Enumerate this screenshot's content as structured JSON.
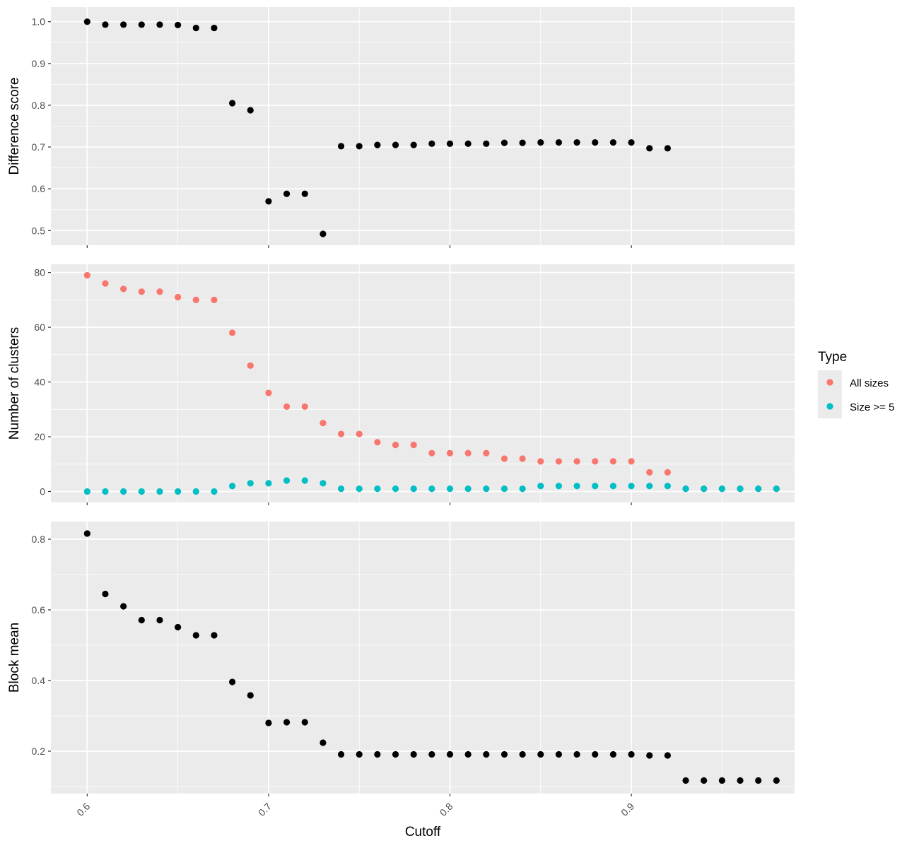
{
  "figure": {
    "xlabel": "Cutoff",
    "legend": {
      "title": "Type",
      "placement": "right",
      "items": [
        {
          "label": "All sizes",
          "color": "#F8766D"
        },
        {
          "label": "Size >= 5",
          "color": "#00BFC4"
        }
      ]
    }
  },
  "chart_data": [
    {
      "type": "scatter",
      "ylabel": "Difference score",
      "xlim": [
        0.58,
        0.99
      ],
      "ylim": [
        0.465,
        1.035
      ],
      "x_ticks": [
        0.6,
        0.7,
        0.8,
        0.9
      ],
      "x_tick_labels": [
        "0.6",
        "0.7",
        "0.8",
        "0.9"
      ],
      "y_ticks": [
        0.5,
        0.6,
        0.7,
        0.8,
        0.9,
        1.0
      ],
      "y_tick_labels": [
        "0.5",
        "0.6",
        "0.7",
        "0.8",
        "0.9",
        "1.0"
      ],
      "grid": true,
      "series": [
        {
          "color": "#000000",
          "x": [
            0.6,
            0.61,
            0.62,
            0.63,
            0.64,
            0.65,
            0.66,
            0.67,
            0.68,
            0.69,
            0.7,
            0.71,
            0.72,
            0.73,
            0.74,
            0.75,
            0.76,
            0.77,
            0.78,
            0.79,
            0.8,
            0.81,
            0.82,
            0.83,
            0.84,
            0.85,
            0.86,
            0.87,
            0.88,
            0.89,
            0.9,
            0.91,
            0.92
          ],
          "y": [
            1.0,
            0.993,
            0.993,
            0.993,
            0.993,
            0.992,
            0.985,
            0.985,
            0.805,
            0.788,
            0.57,
            0.588,
            0.588,
            0.492,
            0.702,
            0.702,
            0.705,
            0.705,
            0.705,
            0.708,
            0.708,
            0.708,
            0.708,
            0.71,
            0.71,
            0.711,
            0.711,
            0.711,
            0.711,
            0.711,
            0.711,
            0.697,
            0.697
          ]
        }
      ]
    },
    {
      "type": "scatter",
      "ylabel": "Number of clusters",
      "xlim": [
        0.58,
        0.99
      ],
      "ylim": [
        -4,
        83
      ],
      "x_ticks": [
        0.6,
        0.7,
        0.8,
        0.9
      ],
      "x_tick_labels": [
        "0.6",
        "0.7",
        "0.8",
        "0.9"
      ],
      "y_ticks": [
        0,
        20,
        40,
        60,
        80
      ],
      "y_tick_labels": [
        "0",
        "20",
        "40",
        "60",
        "80"
      ],
      "grid": true,
      "series": [
        {
          "name": "All sizes",
          "color": "#F8766D",
          "x": [
            0.6,
            0.61,
            0.62,
            0.63,
            0.64,
            0.65,
            0.66,
            0.67,
            0.68,
            0.69,
            0.7,
            0.71,
            0.72,
            0.73,
            0.74,
            0.75,
            0.76,
            0.77,
            0.78,
            0.79,
            0.8,
            0.81,
            0.82,
            0.83,
            0.84,
            0.85,
            0.86,
            0.87,
            0.88,
            0.89,
            0.9,
            0.91,
            0.92,
            0.93,
            0.94,
            0.95,
            0.96,
            0.97,
            0.98
          ],
          "y": [
            79,
            76,
            74,
            73,
            73,
            71,
            70,
            70,
            58,
            46,
            36,
            31,
            31,
            25,
            21,
            21,
            18,
            17,
            17,
            14,
            14,
            14,
            14,
            12,
            12,
            11,
            11,
            11,
            11,
            11,
            11,
            7,
            7,
            1,
            1,
            1,
            1,
            1,
            1
          ]
        },
        {
          "name": "Size >= 5",
          "color": "#00BFC4",
          "x": [
            0.6,
            0.61,
            0.62,
            0.63,
            0.64,
            0.65,
            0.66,
            0.67,
            0.68,
            0.69,
            0.7,
            0.71,
            0.72,
            0.73,
            0.74,
            0.75,
            0.76,
            0.77,
            0.78,
            0.79,
            0.8,
            0.81,
            0.82,
            0.83,
            0.84,
            0.85,
            0.86,
            0.87,
            0.88,
            0.89,
            0.9,
            0.91,
            0.92,
            0.93,
            0.94,
            0.95,
            0.96,
            0.97,
            0.98
          ],
          "y": [
            0,
            0,
            0,
            0,
            0,
            0,
            0,
            0,
            2,
            3,
            3,
            4,
            4,
            3,
            1,
            1,
            1,
            1,
            1,
            1,
            1,
            1,
            1,
            1,
            1,
            2,
            2,
            2,
            2,
            2,
            2,
            2,
            2,
            1,
            1,
            1,
            1,
            1,
            1
          ]
        }
      ]
    },
    {
      "type": "scatter",
      "ylabel": "Block mean",
      "xlim": [
        0.58,
        0.99
      ],
      "ylim": [
        0.08,
        0.85
      ],
      "x_ticks": [
        0.6,
        0.7,
        0.8,
        0.9
      ],
      "x_tick_labels": [
        "0.6",
        "0.7",
        "0.8",
        "0.9"
      ],
      "y_ticks": [
        0.2,
        0.4,
        0.6,
        0.8
      ],
      "y_tick_labels": [
        "0.2",
        "0.4",
        "0.6",
        "0.8"
      ],
      "grid": true,
      "series": [
        {
          "color": "#000000",
          "x": [
            0.6,
            0.61,
            0.62,
            0.63,
            0.64,
            0.65,
            0.66,
            0.67,
            0.68,
            0.69,
            0.7,
            0.71,
            0.72,
            0.73,
            0.74,
            0.75,
            0.76,
            0.77,
            0.78,
            0.79,
            0.8,
            0.81,
            0.82,
            0.83,
            0.84,
            0.85,
            0.86,
            0.87,
            0.88,
            0.89,
            0.9,
            0.91,
            0.92,
            0.93,
            0.94,
            0.95,
            0.96,
            0.97,
            0.98
          ],
          "y": [
            0.816,
            0.645,
            0.61,
            0.571,
            0.571,
            0.551,
            0.528,
            0.528,
            0.396,
            0.358,
            0.28,
            0.282,
            0.282,
            0.224,
            0.191,
            0.191,
            0.191,
            0.191,
            0.191,
            0.191,
            0.191,
            0.191,
            0.191,
            0.191,
            0.191,
            0.191,
            0.191,
            0.191,
            0.191,
            0.191,
            0.191,
            0.188,
            0.188,
            0.117,
            0.117,
            0.117,
            0.117,
            0.117,
            0.117
          ]
        }
      ]
    }
  ]
}
